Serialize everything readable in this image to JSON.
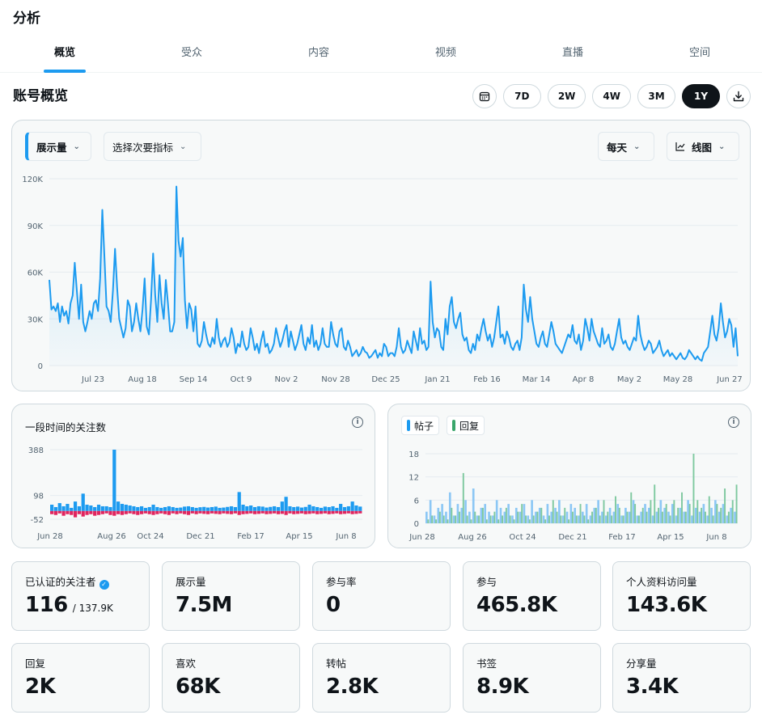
{
  "page_title": "分析",
  "tabs": [
    {
      "label": "概览"
    },
    {
      "label": "受众"
    },
    {
      "label": "内容"
    },
    {
      "label": "视频"
    },
    {
      "label": "直播"
    },
    {
      "label": "空间"
    }
  ],
  "section_title": "账号概览",
  "range_buttons": [
    "7D",
    "2W",
    "4W",
    "3M",
    "1Y"
  ],
  "range_selected": "1Y",
  "main_chart_controls": {
    "primary_metric": "展示量",
    "secondary_metric": "选择次要指标",
    "interval": "每天",
    "chart_type": "线图"
  },
  "colors": {
    "accent": "#1d9bf0",
    "unfollow": "#e0245e",
    "replies": "#3aa66b"
  },
  "chart_data": [
    {
      "type": "area",
      "title": "",
      "x_labels": [
        "Jul 23",
        "Aug 18",
        "Sep 14",
        "Oct 9",
        "Nov 2",
        "Nov 28",
        "Dec 25",
        "Jan 21",
        "Feb 16",
        "Mar 14",
        "Apr 8",
        "May 2",
        "May 28",
        "Jun 27"
      ],
      "y_ticks": [
        "0",
        "30K",
        "60K",
        "90K",
        "120K"
      ],
      "ylim": [
        0,
        120000
      ],
      "series": [
        {
          "values": [
            55000,
            36000,
            38000,
            35000,
            40000,
            28000,
            38000,
            32000,
            35000,
            27000,
            40000,
            45000,
            66000,
            48000,
            30000,
            52000,
            28000,
            22000,
            28000,
            35000,
            30000,
            40000,
            42000,
            35000,
            56000,
            100000,
            70000,
            38000,
            35000,
            28000,
            48000,
            75000,
            50000,
            30000,
            24000,
            18000,
            24000,
            42000,
            38000,
            22000,
            28000,
            40000,
            30000,
            22000,
            36000,
            56000,
            25000,
            20000,
            42000,
            72000,
            45000,
            28000,
            58000,
            40000,
            30000,
            55000,
            40000,
            22000,
            22000,
            28000,
            115000,
            80000,
            70000,
            82000,
            42000,
            24000,
            40000,
            36000,
            22000,
            38000,
            14000,
            12000,
            16000,
            28000,
            20000,
            14000,
            12000,
            18000,
            14000,
            30000,
            18000,
            12000,
            16000,
            18000,
            12000,
            15000,
            24000,
            18000,
            8000,
            14000,
            12000,
            22000,
            14000,
            10000,
            12000,
            24000,
            18000,
            10000,
            14000,
            8000,
            16000,
            22000,
            12000,
            14000,
            8000,
            10000,
            14000,
            24000,
            18000,
            12000,
            16000,
            22000,
            26000,
            12000,
            22000,
            16000,
            10000,
            14000,
            20000,
            26000,
            14000,
            10000,
            18000,
            14000,
            26000,
            12000,
            16000,
            10000,
            14000,
            24000,
            14000,
            12000,
            12000,
            28000,
            20000,
            14000,
            12000,
            22000,
            24000,
            12000,
            10000,
            16000,
            12000,
            6000,
            8000,
            10000,
            6000,
            8000,
            12000,
            9000,
            8000,
            5000,
            6000,
            8000,
            10000,
            5000,
            8000,
            6000,
            14000,
            12000,
            6000,
            8000,
            8000,
            6000,
            12000,
            24000,
            12000,
            8000,
            10000,
            16000,
            12000,
            8000,
            22000,
            16000,
            10000,
            24000,
            14000,
            16000,
            10000,
            12000,
            54000,
            28000,
            18000,
            24000,
            22000,
            12000,
            10000,
            30000,
            20000,
            38000,
            44000,
            28000,
            24000,
            30000,
            34000,
            20000,
            16000,
            18000,
            10000,
            8000,
            14000,
            10000,
            20000,
            16000,
            24000,
            30000,
            22000,
            16000,
            20000,
            12000,
            18000,
            28000,
            38000,
            18000,
            20000,
            14000,
            22000,
            18000,
            12000,
            10000,
            14000,
            16000,
            10000,
            18000,
            52000,
            36000,
            28000,
            44000,
            30000,
            22000,
            14000,
            12000,
            18000,
            22000,
            14000,
            12000,
            20000,
            28000,
            22000,
            14000,
            12000,
            10000,
            8000,
            12000,
            16000,
            20000,
            18000,
            26000,
            16000,
            14000,
            20000,
            10000,
            16000,
            30000,
            24000,
            16000,
            30000,
            22000,
            18000,
            14000,
            12000,
            24000,
            14000,
            16000,
            20000,
            12000,
            10000,
            14000,
            22000,
            30000,
            18000,
            14000,
            16000,
            12000,
            10000,
            14000,
            18000,
            16000,
            32000,
            20000,
            14000,
            10000,
            12000,
            16000,
            14000,
            8000,
            10000,
            12000,
            16000,
            10000,
            6000,
            8000,
            10000,
            6000,
            8000,
            6000,
            4000,
            6000,
            8000,
            5000,
            4000,
            6000,
            10000,
            8000,
            6000,
            4000,
            6000,
            4000,
            3000,
            8000,
            10000,
            12000,
            22000,
            32000,
            20000,
            16000,
            24000,
            40000,
            28000,
            18000,
            22000,
            30000,
            26000,
            12000,
            24000,
            6000
          ]
        }
      ]
    },
    {
      "type": "bar",
      "title": "一段时间的关注数",
      "x_labels": [
        "Jun 28",
        "Aug 26",
        "Oct 24",
        "Dec 21",
        "Feb 17",
        "Apr 15",
        "Jun 8"
      ],
      "y_ticks": [
        "388",
        "98",
        "-52"
      ],
      "ylim": [
        -52,
        388
      ],
      "series": [
        {
          "name": "",
          "values": [
            40,
            25,
            50,
            30,
            45,
            20,
            60,
            30,
            110,
            40,
            35,
            25,
            40,
            30,
            30,
            25,
            388,
            60,
            45,
            40,
            35,
            30,
            25,
            30,
            20,
            25,
            40,
            25,
            20,
            25,
            30,
            25,
            20,
            22,
            28,
            30,
            25,
            20,
            24,
            26,
            22,
            25,
            28,
            20,
            22,
            26,
            30,
            25,
            120,
            40,
            30,
            35,
            25,
            30,
            28,
            22,
            26,
            30,
            25,
            60,
            90,
            30,
            25,
            28,
            22,
            26,
            40,
            30,
            25,
            20,
            28,
            25,
            30,
            20,
            45,
            25,
            30,
            60,
            35,
            28
          ]
        },
        {
          "name": "",
          "values": [
            -20,
            -25,
            -15,
            -30,
            -20,
            -25,
            -40,
            -20,
            -35,
            -25,
            -20,
            -30,
            -25,
            -20,
            -15,
            -25,
            -30,
            -20,
            -25,
            -20,
            -15,
            -20,
            -25,
            -20,
            -15,
            -20,
            -25,
            -20,
            -15,
            -20,
            -25,
            -15,
            -20,
            -15,
            -20,
            -25,
            -15,
            -20,
            -15,
            -18,
            -20,
            -15,
            -18,
            -20,
            -15,
            -18,
            -20,
            -15,
            -25,
            -20,
            -18,
            -15,
            -20,
            -18,
            -15,
            -20,
            -18,
            -15,
            -20,
            -18,
            -25,
            -15,
            -20,
            -18,
            -15,
            -20,
            -18,
            -15,
            -20,
            -18,
            -15,
            -20,
            -18,
            -15,
            -20,
            -18,
            -15,
            -20,
            -18,
            -15
          ]
        }
      ]
    },
    {
      "type": "bar",
      "title": "",
      "x_labels": [
        "Jun 28",
        "Aug 26",
        "Oct 24",
        "Dec 21",
        "Feb 17",
        "Apr 15",
        "Jun 8"
      ],
      "y_ticks": [
        "0",
        "6",
        "12",
        "18"
      ],
      "ylim": [
        0,
        18
      ],
      "legend": [
        "帖子",
        "回复"
      ],
      "series": [
        {
          "name": "帖子",
          "values": [
            3,
            6,
            2,
            4,
            5,
            3,
            8,
            2,
            5,
            4,
            6,
            3,
            9,
            2,
            4,
            5,
            3,
            2,
            6,
            4,
            3,
            5,
            2,
            4,
            3,
            5,
            2,
            6,
            3,
            4,
            2,
            5,
            3,
            4,
            6,
            2,
            3,
            5,
            4,
            2,
            3,
            5,
            2,
            4,
            6,
            3,
            2,
            4,
            3,
            5,
            2,
            4,
            3,
            6,
            2,
            3,
            5,
            4,
            2,
            3,
            6,
            4,
            3,
            5,
            2,
            4,
            3,
            6,
            2,
            4,
            3,
            5,
            2,
            4,
            6,
            3,
            5,
            2,
            4,
            3
          ]
        },
        {
          "name": "回复",
          "values": [
            1,
            2,
            1,
            3,
            2,
            1,
            4,
            2,
            3,
            13,
            2,
            1,
            3,
            2,
            4,
            1,
            2,
            3,
            1,
            2,
            4,
            2,
            1,
            3,
            5,
            2,
            1,
            2,
            3,
            4,
            1,
            2,
            6,
            3,
            2,
            4,
            1,
            3,
            2,
            5,
            2,
            1,
            3,
            4,
            2,
            6,
            3,
            2,
            7,
            4,
            2,
            3,
            8,
            5,
            2,
            4,
            3,
            6,
            10,
            4,
            3,
            5,
            2,
            6,
            4,
            8,
            3,
            5,
            18,
            6,
            4,
            3,
            7,
            2,
            5,
            4,
            9,
            3,
            6,
            10
          ]
        }
      ]
    }
  ],
  "followers_chart": {
    "title": "一段时间的关注数"
  },
  "posts_chart": {
    "legend_posts": "帖子",
    "legend_replies": "回复"
  },
  "metrics": [
    {
      "label": "已认证的关注者",
      "value": "116",
      "sub": "/ 137.9K"
    },
    {
      "label": "展示量",
      "value": "7.5M"
    },
    {
      "label": "参与率",
      "value": "0"
    },
    {
      "label": "参与",
      "value": "465.8K"
    },
    {
      "label": "个人资料访问量",
      "value": "143.6K"
    },
    {
      "label": "回复",
      "value": "2K"
    },
    {
      "label": "喜欢",
      "value": "68K"
    },
    {
      "label": "转帖",
      "value": "2.8K"
    },
    {
      "label": "书签",
      "value": "8.9K"
    },
    {
      "label": "分享量",
      "value": "3.4K"
    }
  ]
}
